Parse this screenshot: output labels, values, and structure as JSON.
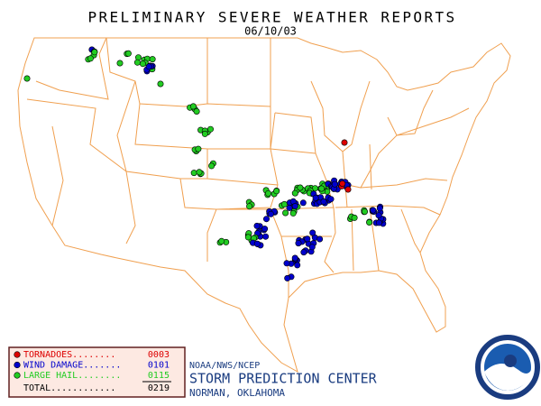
{
  "header": {
    "title": "PRELIMINARY SEVERE WEATHER REPORTS",
    "date": "06/10/03"
  },
  "legend": {
    "items": [
      {
        "label": "TORNADOES........",
        "count": "0003",
        "color": "#dd0000"
      },
      {
        "label": "WIND DAMAGE.......",
        "count": "0101",
        "color": "#0000cc"
      },
      {
        "label": "LARGE HAIL........",
        "count": "0115",
        "color": "#22cc22"
      }
    ],
    "total_label": "TOTAL............",
    "total": "0219"
  },
  "footer": {
    "agency": "NOAA/NWS/NCEP",
    "center": "STORM PREDICTION CENTER",
    "location": "NORMAN, OKLAHOMA"
  }
}
